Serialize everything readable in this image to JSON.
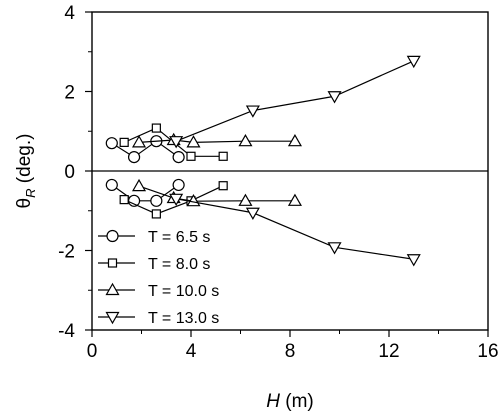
{
  "chart_data": {
    "type": "line",
    "xlabel_var": "H",
    "xlabel_unit": " (m)",
    "ylabel_main": "θ",
    "ylabel_sub": "R",
    "ylabel_unit": " (deg.)",
    "xlim": [
      0,
      16
    ],
    "ylim": [
      -4,
      4
    ],
    "xticks": [
      0,
      4,
      8,
      12,
      16
    ],
    "yticks": [
      -4,
      -2,
      0,
      2,
      4
    ],
    "xtick_labels": [
      "0",
      "4",
      "8",
      "12",
      "16"
    ],
    "ytick_labels": [
      "-4",
      "-2",
      "0",
      "2",
      "4"
    ],
    "grid": false,
    "zero_line": true,
    "legend_position": "bottom-left",
    "series": [
      {
        "name": "T = 6.5 s",
        "marker": "circle",
        "segments": [
          [
            [
              0.8,
              0.7
            ],
            [
              1.7,
              0.35
            ],
            [
              2.6,
              0.75
            ],
            [
              3.5,
              0.35
            ]
          ],
          [
            [
              0.8,
              -0.35
            ],
            [
              1.7,
              -0.75
            ],
            [
              2.6,
              -0.75
            ],
            [
              3.5,
              -0.35
            ]
          ]
        ]
      },
      {
        "name": "T = 8.0 s",
        "marker": "square",
        "segments": [
          [
            [
              1.3,
              0.72
            ],
            [
              2.6,
              1.08
            ],
            [
              4.0,
              0.37
            ],
            [
              5.3,
              0.37
            ]
          ],
          [
            [
              1.3,
              -0.72
            ],
            [
              2.6,
              -1.08
            ],
            [
              4.0,
              -0.75
            ],
            [
              5.3,
              -0.37
            ]
          ]
        ]
      },
      {
        "name": "T = 10.0 s",
        "marker": "triangle-up",
        "segments": [
          [
            [
              1.9,
              0.72
            ],
            [
              3.3,
              0.78
            ],
            [
              4.1,
              0.72
            ],
            [
              6.2,
              0.75
            ],
            [
              8.2,
              0.75
            ]
          ],
          [
            [
              1.9,
              -0.38
            ],
            [
              3.3,
              -0.68
            ],
            [
              4.1,
              -0.76
            ],
            [
              6.2,
              -0.75
            ],
            [
              8.2,
              -0.75
            ]
          ]
        ]
      },
      {
        "name": "T = 13.0 s",
        "marker": "triangle-down",
        "segments": [
          [
            [
              3.4,
              0.75
            ],
            [
              6.5,
              1.52
            ],
            [
              9.8,
              1.88
            ],
            [
              13.0,
              2.77
            ]
          ],
          [
            [
              3.4,
              -0.7
            ],
            [
              6.5,
              -1.05
            ],
            [
              9.8,
              -1.92
            ],
            [
              13.0,
              -2.22
            ]
          ]
        ]
      }
    ]
  }
}
